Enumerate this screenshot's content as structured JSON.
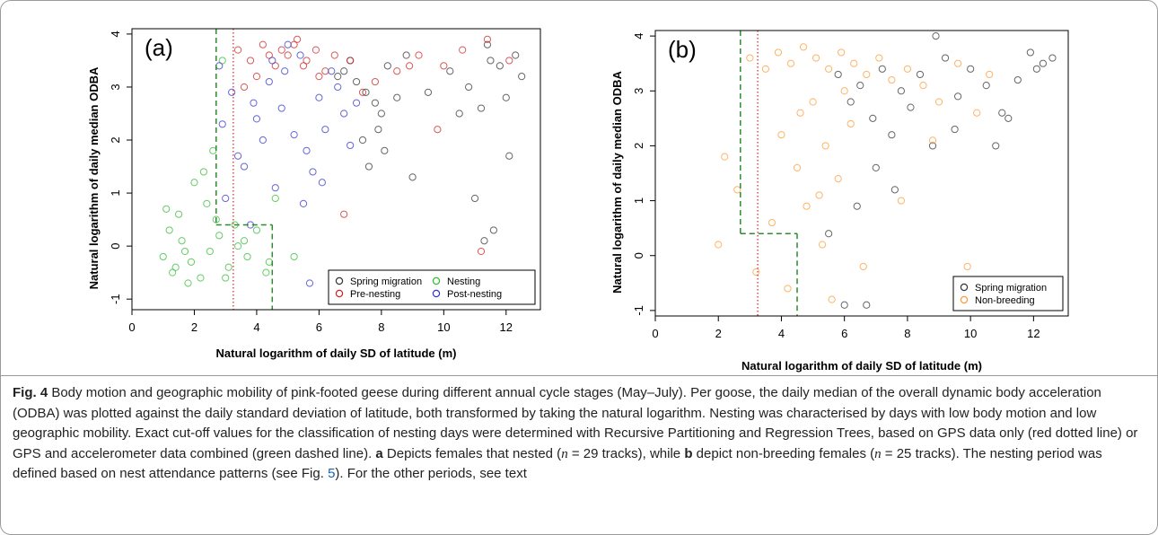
{
  "chart_data": [
    {
      "type": "scatter",
      "panel_label": "(a)",
      "x_label": "Natural logarithm of daily SD of latitude (m)",
      "y_label": "Natural logarithm of daily median ODBA",
      "xlim": [
        0,
        13.1
      ],
      "ylim": [
        -1.2,
        4.1
      ],
      "xticks": [
        0,
        2,
        4,
        6,
        8,
        10,
        12
      ],
      "yticks": [
        -1,
        0,
        1,
        2,
        3,
        4
      ],
      "legend": "bottomright",
      "legend_columns": 2,
      "cutoffs": {
        "gps_x": 3.25,
        "gps_color": "#cc2222",
        "combined_x1": 2.7,
        "combined_y": 0.4,
        "combined_x2": 4.5,
        "combined_color": "#2e8b2e"
      },
      "series": [
        {
          "name": "Spring migration",
          "color": "#333333",
          "x": [
            6.8,
            7.2,
            7.5,
            7.8,
            8.0,
            8.2,
            7.9,
            8.5,
            7.0,
            6.6,
            7.4,
            8.8,
            9.5,
            10.2,
            10.8,
            11.2,
            11.5,
            11.8,
            12.0,
            12.3,
            12.5,
            11.0,
            11.6,
            12.1,
            10.5,
            9.0,
            11.3,
            8.1,
            7.6,
            11.4
          ],
          "values": [
            3.3,
            3.1,
            2.9,
            2.7,
            2.5,
            3.4,
            2.2,
            2.8,
            3.5,
            3.2,
            2.0,
            3.6,
            2.9,
            3.3,
            3.0,
            2.6,
            3.5,
            3.4,
            2.8,
            3.6,
            3.2,
            0.9,
            0.3,
            1.7,
            2.5,
            1.3,
            0.1,
            1.8,
            1.5,
            3.8
          ]
        },
        {
          "name": "Nesting",
          "color": "#33bb33",
          "x": [
            1.0,
            1.3,
            1.6,
            1.9,
            2.2,
            2.5,
            2.8,
            3.1,
            3.4,
            3.7,
            4.0,
            4.3,
            1.5,
            2.0,
            2.4,
            1.2,
            1.8,
            2.7,
            3.0,
            3.6,
            4.4,
            1.1,
            2.3,
            3.3,
            1.4,
            2.6,
            2.9,
            1.7,
            4.6,
            5.2
          ],
          "values": [
            -0.2,
            -0.5,
            0.1,
            -0.3,
            -0.6,
            -0.1,
            0.2,
            -0.4,
            0.0,
            -0.2,
            0.3,
            -0.5,
            0.6,
            1.2,
            0.8,
            0.3,
            -0.7,
            0.5,
            -0.6,
            0.1,
            -0.3,
            0.7,
            1.4,
            0.4,
            -0.4,
            1.8,
            3.5,
            -0.1,
            0.9,
            -0.2
          ]
        },
        {
          "name": "Pre-nesting",
          "color": "#cc2222",
          "x": [
            3.4,
            3.8,
            4.2,
            4.6,
            5.0,
            5.3,
            5.6,
            5.9,
            6.2,
            6.5,
            4.0,
            4.8,
            5.5,
            7.0,
            7.8,
            8.5,
            9.2,
            10.0,
            10.6,
            11.4,
            12.1,
            3.6,
            5.2,
            6.0,
            4.4,
            9.8,
            7.4,
            8.9,
            11.2,
            6.8
          ],
          "values": [
            3.7,
            3.5,
            3.8,
            3.4,
            3.6,
            3.9,
            3.5,
            3.7,
            3.3,
            3.6,
            3.2,
            3.7,
            3.4,
            3.5,
            3.1,
            3.3,
            3.6,
            3.4,
            3.7,
            3.9,
            3.5,
            3.0,
            3.8,
            3.2,
            3.6,
            2.2,
            2.9,
            3.4,
            -0.1,
            0.6
          ]
        },
        {
          "name": "Post-nesting",
          "color": "#3333cc",
          "x": [
            2.8,
            3.2,
            3.6,
            4.0,
            4.4,
            4.8,
            5.2,
            5.6,
            6.0,
            6.4,
            6.8,
            3.0,
            3.8,
            4.6,
            5.4,
            6.2,
            5.0,
            5.8,
            4.2,
            3.4,
            6.6,
            7.2,
            5.5,
            4.9,
            3.9,
            5.7,
            2.9,
            6.1,
            4.5,
            7.0
          ],
          "values": [
            3.4,
            2.9,
            1.5,
            2.4,
            3.1,
            2.6,
            2.1,
            1.8,
            2.8,
            3.3,
            2.5,
            0.9,
            0.4,
            1.1,
            3.6,
            2.2,
            3.8,
            1.4,
            2.0,
            1.7,
            3.0,
            2.7,
            0.8,
            3.3,
            2.7,
            -0.7,
            2.3,
            1.2,
            3.5,
            1.9
          ]
        }
      ]
    },
    {
      "type": "scatter",
      "panel_label": "(b)",
      "x_label": "Natural logarithm of daily SD of latitude (m)",
      "y_label": "Natural logarithm of daily median ODBA",
      "xlim": [
        0,
        13.1
      ],
      "ylim": [
        -1.1,
        4.1
      ],
      "xticks": [
        0,
        2,
        4,
        6,
        8,
        10,
        12
      ],
      "yticks": [
        -1,
        0,
        1,
        2,
        3,
        4
      ],
      "legend": "bottomright",
      "legend_columns": 1,
      "cutoffs": {
        "gps_x": 3.25,
        "gps_color": "#cc2222",
        "combined_x1": 2.7,
        "combined_y": 0.4,
        "combined_x2": 4.5,
        "combined_color": "#2e8b2e"
      },
      "series": [
        {
          "name": "Spring migration",
          "color": "#333333",
          "x": [
            5.8,
            6.2,
            6.5,
            6.9,
            7.2,
            7.5,
            7.8,
            8.1,
            8.4,
            8.8,
            9.2,
            9.6,
            10.0,
            10.5,
            11.0,
            11.5,
            11.9,
            12.3,
            12.6,
            6.0,
            6.7,
            7.0,
            5.5,
            9.5,
            11.2,
            8.9,
            7.6,
            10.8,
            12.1,
            6.4
          ],
          "values": [
            3.3,
            2.8,
            3.1,
            2.5,
            3.4,
            2.2,
            3.0,
            2.7,
            3.3,
            2.0,
            3.6,
            2.9,
            3.4,
            3.1,
            2.6,
            3.2,
            3.7,
            3.5,
            3.6,
            -0.9,
            -0.9,
            1.6,
            0.4,
            2.3,
            2.5,
            4.0,
            1.2,
            2.0,
            3.4,
            0.9
          ]
        },
        {
          "name": "Non-breeding",
          "color": "#ff9933",
          "x": [
            2.2,
            2.6,
            3.0,
            3.5,
            3.9,
            4.3,
            4.7,
            5.1,
            5.5,
            5.9,
            6.3,
            6.7,
            7.1,
            7.5,
            8.0,
            8.5,
            9.0,
            9.6,
            10.2,
            4.0,
            4.5,
            5.0,
            5.4,
            5.8,
            6.2,
            4.8,
            5.3,
            3.7,
            6.6,
            7.8,
            8.8,
            2.0,
            3.2,
            4.2,
            5.6,
            6.0,
            9.9,
            10.6,
            4.6,
            5.2
          ],
          "values": [
            1.8,
            1.2,
            3.6,
            3.4,
            3.7,
            3.5,
            3.8,
            3.6,
            3.4,
            3.7,
            3.5,
            3.3,
            3.6,
            3.2,
            3.4,
            3.1,
            2.8,
            3.5,
            2.6,
            2.2,
            1.6,
            2.8,
            2.0,
            1.4,
            2.4,
            0.9,
            0.2,
            0.6,
            -0.2,
            1.0,
            2.1,
            0.2,
            -0.3,
            -0.6,
            -0.8,
            3.0,
            -0.2,
            3.3,
            2.6,
            1.1
          ]
        }
      ]
    }
  ],
  "caption": {
    "label": "Fig. 4",
    "parts": [
      " Body motion and geographic mobility of pink-footed geese during different annual cycle stages (May–July). Per goose, the daily median of the overall dynamic body acceleration (ODBA) was plotted against the daily standard deviation of latitude, both transformed by taking the natural logarithm. Nesting was characterised by days with low body motion and low geographic mobility. Exact cut-off values for the classification of nesting days were determined with Recursive Partitioning and Regression Trees, based on GPS data only (red dotted line) or GPS and accelerometer data combined (green dashed line). ",
      "a",
      " Depicts females that nested (",
      "n",
      " = 29 tracks), while ",
      "b",
      " depict non-breeding females (",
      "n",
      " = 25 tracks). The nesting period was defined based on nest attendance patterns (see Fig. ",
      "5",
      "). For the other periods, see text"
    ]
  }
}
